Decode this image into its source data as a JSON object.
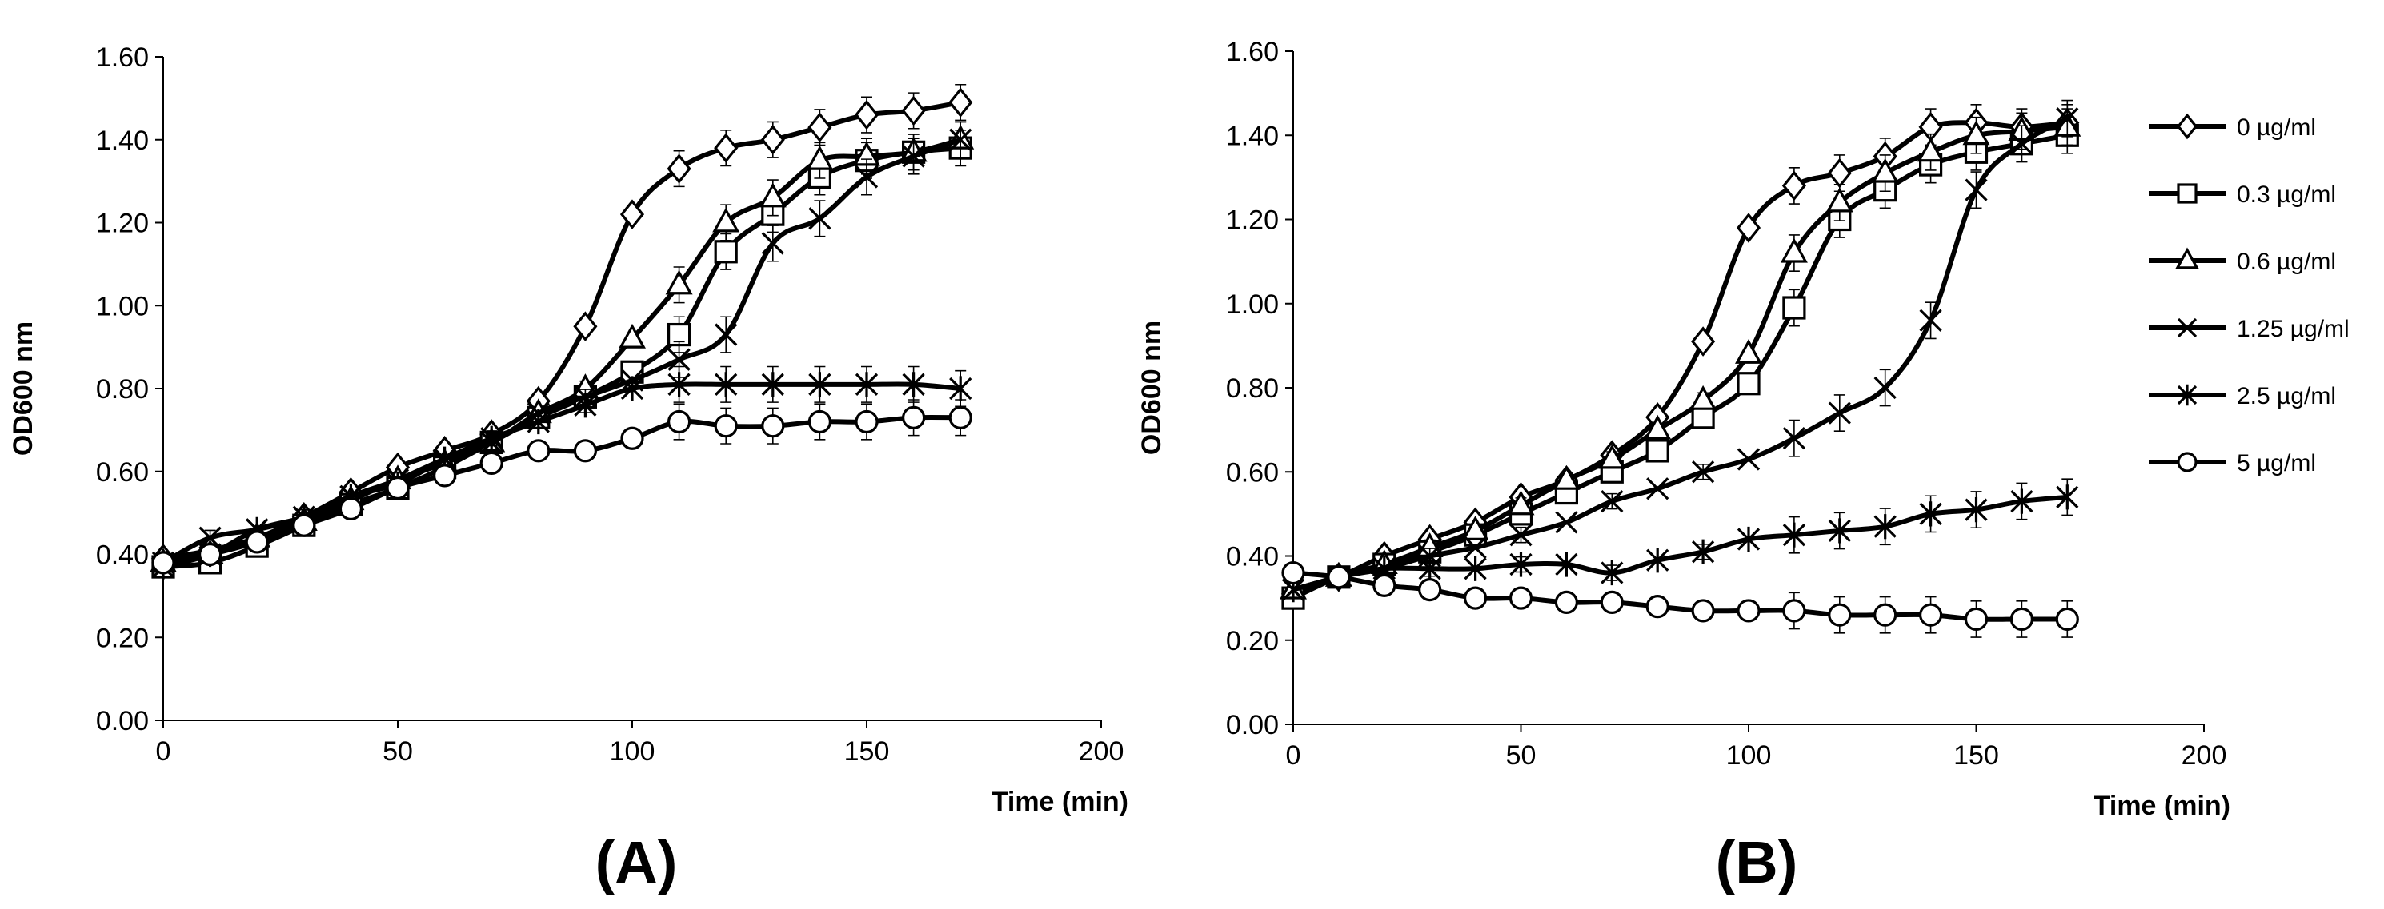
{
  "chart_data": [
    {
      "type": "line",
      "panel_label": "(A)",
      "xlabel": "Time (min)",
      "ylabel": "OD600 nm",
      "xlim": [
        0,
        200
      ],
      "ylim": [
        0,
        1.6
      ],
      "xticks": [
        "0",
        "50",
        "100",
        "150",
        "200"
      ],
      "yticks": [
        "0.00",
        "0.20",
        "0.40",
        "0.60",
        "0.80",
        "1.00",
        "1.20",
        "1.40",
        "1.60"
      ],
      "grid": false,
      "x": [
        0,
        10,
        20,
        30,
        40,
        50,
        60,
        70,
        80,
        90,
        100,
        110,
        120,
        130,
        140,
        150,
        160,
        170
      ],
      "series": [
        {
          "name": "0 µg/ml",
          "marker": "diamond",
          "values": [
            0.39,
            0.41,
            0.44,
            0.49,
            0.55,
            0.61,
            0.65,
            0.69,
            0.77,
            0.95,
            1.22,
            1.33,
            1.38,
            1.4,
            1.43,
            1.46,
            1.47,
            1.49
          ]
        },
        {
          "name": "0.3 µg/ml",
          "marker": "square",
          "values": [
            0.37,
            0.38,
            0.42,
            0.47,
            0.52,
            0.56,
            0.61,
            0.67,
            0.73,
            0.78,
            0.84,
            0.93,
            1.13,
            1.22,
            1.31,
            1.35,
            1.37,
            1.38
          ]
        },
        {
          "name": "0.6 µg/ml",
          "marker": "triangle",
          "values": [
            0.38,
            0.4,
            0.44,
            0.48,
            0.53,
            0.58,
            0.62,
            0.67,
            0.74,
            0.8,
            0.92,
            1.05,
            1.2,
            1.26,
            1.35,
            1.36,
            1.37,
            1.4
          ]
        },
        {
          "name": "1.25 µg/ml",
          "marker": "x",
          "values": [
            0.38,
            0.44,
            0.46,
            0.49,
            0.54,
            0.58,
            0.63,
            0.67,
            0.74,
            0.78,
            0.82,
            0.87,
            0.93,
            1.15,
            1.21,
            1.31,
            1.36,
            1.4
          ]
        },
        {
          "name": "2.5 µg/ml",
          "marker": "asterisk",
          "values": [
            0.37,
            0.4,
            0.46,
            0.49,
            0.54,
            0.57,
            0.63,
            0.68,
            0.72,
            0.76,
            0.8,
            0.81,
            0.81,
            0.81,
            0.81,
            0.81,
            0.81,
            0.8
          ]
        },
        {
          "name": "5 µg/ml",
          "marker": "circle",
          "values": [
            0.38,
            0.4,
            0.43,
            0.47,
            0.51,
            0.56,
            0.59,
            0.62,
            0.65,
            0.65,
            0.68,
            0.72,
            0.71,
            0.71,
            0.72,
            0.72,
            0.73,
            0.73
          ]
        }
      ]
    },
    {
      "type": "line",
      "panel_label": "(B)",
      "xlabel": "Time (min)",
      "ylabel": "OD600 nm",
      "xlim": [
        0,
        200
      ],
      "ylim": [
        0,
        1.6
      ],
      "xticks": [
        "0",
        "50",
        "100",
        "150",
        "200"
      ],
      "yticks": [
        "0.00",
        "0.20",
        "0.40",
        "0.60",
        "0.80",
        "1.00",
        "1.20",
        "1.40",
        "1.60"
      ],
      "grid": false,
      "legend": "right",
      "x": [
        0,
        10,
        20,
        30,
        40,
        50,
        60,
        70,
        80,
        90,
        100,
        110,
        120,
        130,
        140,
        150,
        160,
        170
      ],
      "series": [
        {
          "name": "0 µg/ml",
          "marker": "diamond",
          "values": [
            0.31,
            0.35,
            0.4,
            0.44,
            0.48,
            0.54,
            0.58,
            0.64,
            0.73,
            0.91,
            1.18,
            1.28,
            1.31,
            1.35,
            1.42,
            1.43,
            1.42,
            1.43
          ]
        },
        {
          "name": "0.3 µg/ml",
          "marker": "square",
          "values": [
            0.3,
            0.35,
            0.38,
            0.41,
            0.45,
            0.5,
            0.55,
            0.6,
            0.65,
            0.73,
            0.81,
            0.99,
            1.2,
            1.27,
            1.33,
            1.36,
            1.38,
            1.4
          ]
        },
        {
          "name": "0.6 µg/ml",
          "marker": "triangle",
          "values": [
            0.32,
            0.35,
            0.38,
            0.42,
            0.46,
            0.52,
            0.58,
            0.63,
            0.7,
            0.77,
            0.88,
            1.12,
            1.24,
            1.31,
            1.36,
            1.4,
            1.41,
            1.42
          ]
        },
        {
          "name": "1.25 µg/ml",
          "marker": "x",
          "values": [
            0.32,
            0.35,
            0.37,
            0.4,
            0.42,
            0.45,
            0.48,
            0.53,
            0.56,
            0.6,
            0.63,
            0.68,
            0.74,
            0.8,
            0.96,
            1.27,
            1.38,
            1.44
          ]
        },
        {
          "name": "2.5 µg/ml",
          "marker": "asterisk",
          "values": [
            0.32,
            0.35,
            0.37,
            0.37,
            0.37,
            0.38,
            0.38,
            0.36,
            0.39,
            0.41,
            0.44,
            0.45,
            0.46,
            0.47,
            0.5,
            0.51,
            0.53,
            0.54
          ]
        },
        {
          "name": "5 µg/ml",
          "marker": "circle",
          "values": [
            0.36,
            0.35,
            0.33,
            0.32,
            0.3,
            0.3,
            0.29,
            0.29,
            0.28,
            0.27,
            0.27,
            0.27,
            0.26,
            0.26,
            0.26,
            0.25,
            0.25,
            0.25
          ]
        }
      ]
    }
  ]
}
